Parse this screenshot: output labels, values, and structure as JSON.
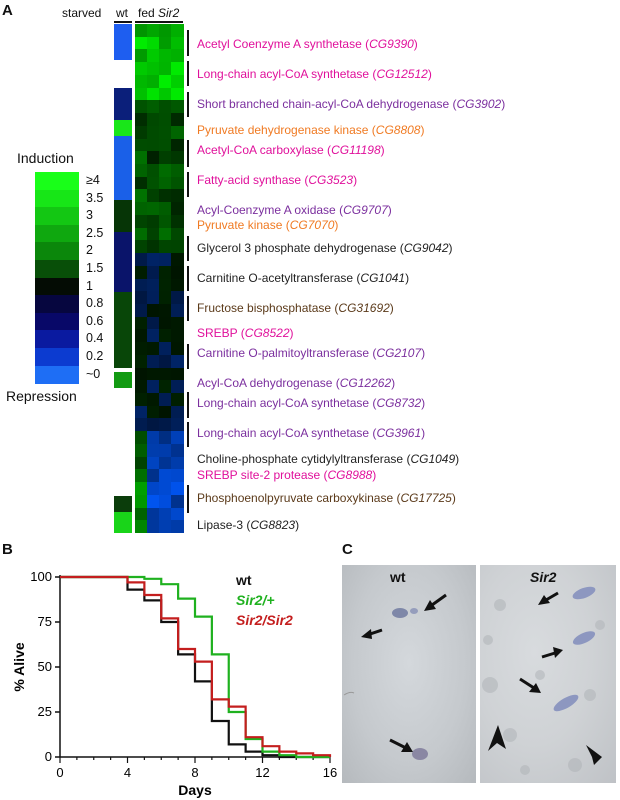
{
  "panelA": {
    "label": "A",
    "headers": {
      "starved": "starved",
      "wt": "wt",
      "fed": "fed",
      "sir2": "Sir2"
    },
    "legend": {
      "top": "Induction",
      "bottom": "Repression",
      "levels": [
        "≥4",
        "3.5",
        "3",
        "2.5",
        "2",
        "1.5",
        "1",
        "0.8",
        "0.6",
        "0.4",
        "0.2",
        "~0"
      ],
      "colors": [
        "#19ff19",
        "#17e617",
        "#13c713",
        "#0fa80f",
        "#0b870b",
        "#084f08",
        "#040c04",
        "#06063f",
        "#080868",
        "#0a1aa0",
        "#0c3bd0",
        "#1e6ef5"
      ]
    },
    "genes": [
      {
        "name": "Acetyl Coenzyme A synthetase (",
        "id": "CG9390",
        "end": ")",
        "color": "#e0109b"
      },
      {
        "name": "Long-chain acyl-CoA synthetase (",
        "id": "CG12512",
        "end": ")",
        "color": "#e0109b"
      },
      {
        "name": "Short branched chain-acyl-CoA dehydrogenase (",
        "id": "CG3902",
        "end": ")",
        "color": "#7b2f9e"
      },
      {
        "name": "Pyruvate dehydrogenase kinase (",
        "id": "CG8808",
        "end": ")",
        "color": "#f07a22"
      },
      {
        "name": "Acetyl-CoA carboxylase (",
        "id": "CG11198",
        "end": ")",
        "color": "#e0109b"
      },
      {
        "name": "Fatty-acid synthase (",
        "id": "CG3523",
        "end": ")",
        "color": "#e0109b"
      },
      {
        "name": "Acyl-Coenzyme A oxidase (",
        "id": "CG9707",
        "end": ")",
        "color": "#7b2f9e"
      },
      {
        "name": "Pyruvate kinase (",
        "id": "CG7070",
        "end": ")",
        "color": "#f07a22"
      },
      {
        "name": "Glycerol 3 phosphate dehydrogenase (",
        "id": "CG9042",
        "end": ")",
        "color": "#222222"
      },
      {
        "name": "Carnitine O-acetyltransferase (",
        "id": "CG1041",
        "end": ")",
        "color": "#222222"
      },
      {
        "name": "Fructose bisphosphatase (",
        "id": "CG31692",
        "end": ")",
        "color": "#5b3a1a"
      },
      {
        "name": "SREBP (",
        "id": "CG8522",
        "end": ")",
        "color": "#e0109b"
      },
      {
        "name": "Carnitine O-palmitoyltransferase (",
        "id": "CG2107",
        "end": ")",
        "color": "#7b2f9e"
      },
      {
        "name": "Acyl-CoA dehydrogenase (",
        "id": "CG12262",
        "end": ")",
        "color": "#7b2f9e"
      },
      {
        "name": "Long-chain acyl-CoA synthetase (",
        "id": "CG8732",
        "end": ")",
        "color": "#7b2f9e"
      },
      {
        "name": "Long-chain acyl-CoA synthetase (",
        "id": "CG3961",
        "end": ")",
        "color": "#7b2f9e"
      },
      {
        "name": "Choline-phosphate cytidylyltransferase (",
        "id": "CG1049",
        "end": ")",
        "color": "#222222"
      },
      {
        "name": "SREBP site-2 protease (",
        "id": "CG8988",
        "end": ")",
        "color": "#e0109b"
      },
      {
        "name": "Phosphoenolpyruvate carboxykinase (",
        "id": "CG17725",
        "end": ")",
        "color": "#5b3a1a"
      },
      {
        "name": "Lipase-3 (",
        "id": "CG8823",
        "end": ")",
        "color": "#222222"
      }
    ]
  },
  "panelB": {
    "label": "B",
    "chart_data": {
      "type": "line",
      "xlabel": "Days",
      "ylabel": "% Alive",
      "xlim": [
        0,
        16
      ],
      "ylim": [
        0,
        100
      ],
      "xticks": [
        "0",
        "4",
        "8",
        "12",
        "16"
      ],
      "yticks": [
        "0",
        "25",
        "50",
        "75",
        "100"
      ],
      "series": [
        {
          "name": "wt",
          "color": "#111111",
          "x": [
            0,
            4,
            5,
            6,
            7,
            8,
            9,
            10,
            11,
            12,
            13,
            16
          ],
          "y": [
            100,
            93,
            87,
            75,
            57,
            42,
            20,
            7,
            3,
            1,
            0,
            0
          ]
        },
        {
          "name": "Sir2/+",
          "color": "#1fb11f",
          "x": [
            0,
            4,
            5,
            6,
            7,
            8,
            9,
            10,
            11,
            12,
            13,
            14,
            16
          ],
          "y": [
            100,
            100,
            99,
            96,
            88,
            78,
            57,
            25,
            10,
            3,
            1,
            0,
            0
          ]
        },
        {
          "name": "Sir2/Sir2",
          "color": "#c41e1e",
          "x": [
            0,
            4,
            5,
            6,
            7,
            8,
            9,
            10,
            11,
            12,
            13,
            14,
            15,
            16
          ],
          "y": [
            100,
            97,
            90,
            77,
            60,
            53,
            32,
            28,
            11,
            6,
            3,
            2,
            1,
            0
          ]
        }
      ]
    }
  },
  "panelC": {
    "label": "C",
    "wt": "wt",
    "sir2": "Sir2"
  }
}
